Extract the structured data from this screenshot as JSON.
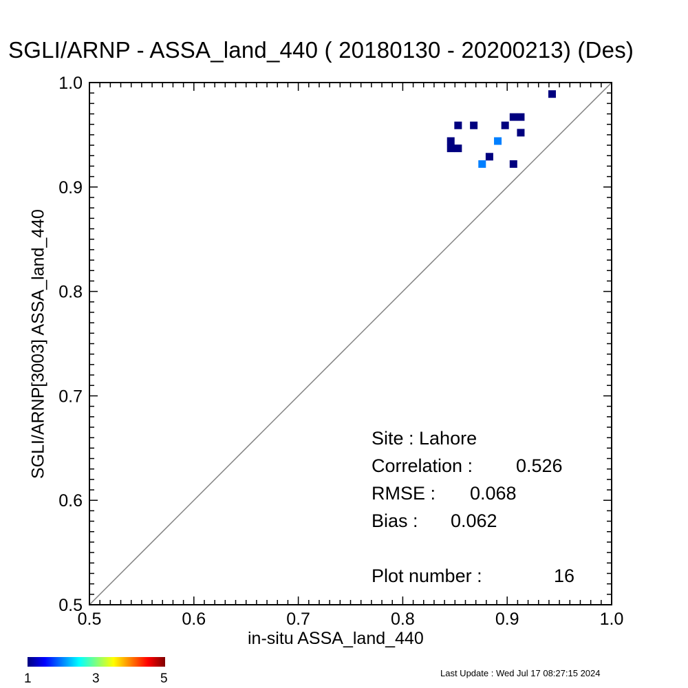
{
  "chart_data": {
    "type": "scatter",
    "title": "SGLI/ARNP - ASSA_land_440 ( 20180130 - 20200213) (Des)",
    "xlabel": "in-situ ASSA_land_440",
    "ylabel": "SGLI/ARNP[3003]    ASSA_land_440",
    "xlim": [
      0.5,
      1.0
    ],
    "ylim": [
      0.5,
      1.0
    ],
    "xticks": [
      "0.5",
      "0.6",
      "0.7",
      "0.8",
      "0.9",
      "1.0"
    ],
    "yticks": [
      "0.5",
      "0.6",
      "0.7",
      "0.8",
      "0.9",
      "1.0"
    ],
    "reference_line": "1:1",
    "points": [
      {
        "x": 0.943,
        "y": 0.989,
        "count": 1
      },
      {
        "x": 0.853,
        "y": 0.959,
        "count": 1
      },
      {
        "x": 0.868,
        "y": 0.959,
        "count": 1
      },
      {
        "x": 0.898,
        "y": 0.959,
        "count": 1
      },
      {
        "x": 0.906,
        "y": 0.967,
        "count": 1
      },
      {
        "x": 0.913,
        "y": 0.967,
        "count": 1
      },
      {
        "x": 0.913,
        "y": 0.952,
        "count": 1
      },
      {
        "x": 0.846,
        "y": 0.944,
        "count": 1
      },
      {
        "x": 0.846,
        "y": 0.937,
        "count": 1
      },
      {
        "x": 0.853,
        "y": 0.937,
        "count": 1
      },
      {
        "x": 0.891,
        "y": 0.944,
        "count": 2
      },
      {
        "x": 0.883,
        "y": 0.929,
        "count": 1
      },
      {
        "x": 0.876,
        "y": 0.922,
        "count": 2
      },
      {
        "x": 0.906,
        "y": 0.922,
        "count": 1
      }
    ],
    "colorbar": {
      "min": 1,
      "max": 5,
      "labels": [
        "1",
        "3",
        "5"
      ],
      "colors": [
        "#00007f",
        "#0000ff",
        "#007fff",
        "#00ffff",
        "#7fff7f",
        "#ffff00",
        "#ff7f00",
        "#ff0000",
        "#7f0000"
      ]
    },
    "stats": {
      "site_label": "Site : Lahore",
      "correlation_label": "Correlation :",
      "correlation_value": "0.526",
      "rmse_label": "RMSE :",
      "rmse_value": "0.068",
      "bias_label": "Bias :",
      "bias_value": "0.062",
      "plot_number_label": "Plot number :",
      "plot_number_value": "16"
    }
  },
  "footer": {
    "last_update": "Last Update : Wed Jul 17 08:27:15 2024"
  }
}
